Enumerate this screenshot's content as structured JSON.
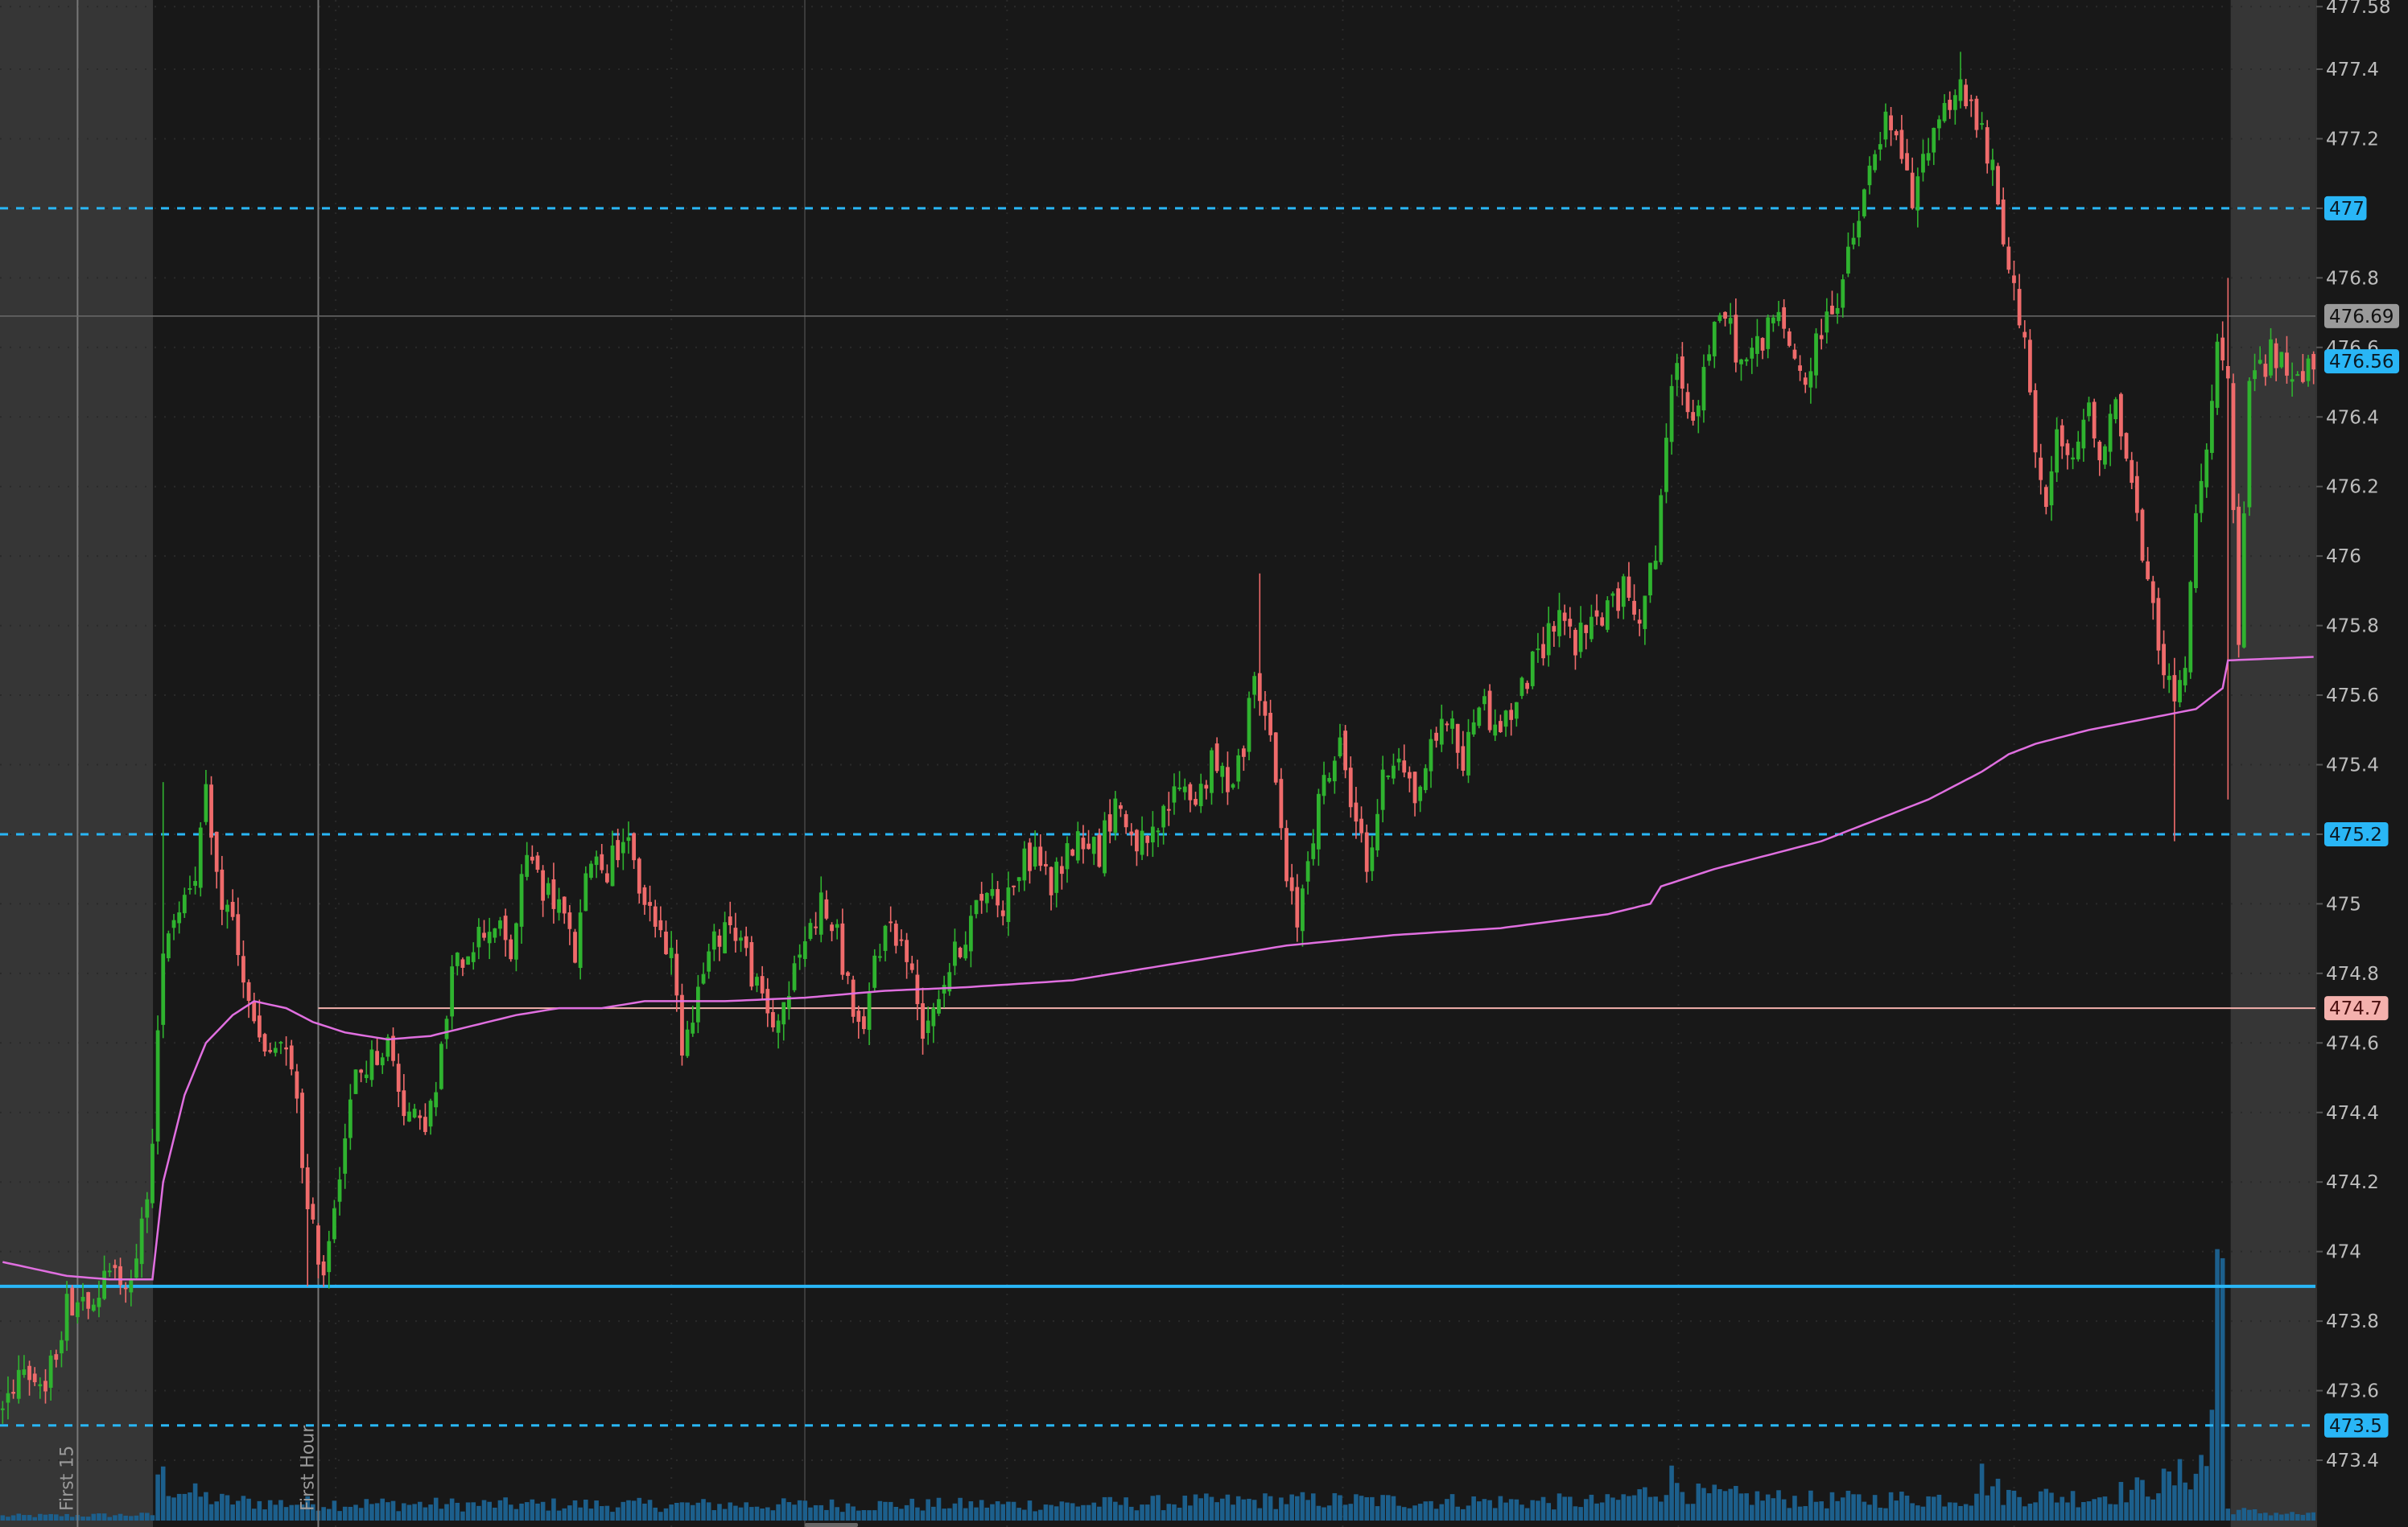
{
  "chart_data": {
    "type": "candlestick",
    "title": "",
    "xlabel": "",
    "ylabel": "",
    "ylim": [
      473.3,
      477.6
    ],
    "y_ticks": [
      473.4,
      473.6,
      473.8,
      474,
      474.2,
      474.4,
      474.6,
      474.8,
      475,
      475.2,
      475.4,
      475.6,
      475.8,
      476,
      476.2,
      476.4,
      476.6,
      476.8,
      477,
      477.2,
      477.4,
      477.58
    ],
    "y_tick_labels": [
      "473.4",
      "473.6",
      "473.8",
      "474",
      "474.2",
      "474.4",
      "474.6",
      "474.8",
      "475",
      "475.2",
      "475.4",
      "475.6",
      "475.8",
      "476",
      "476.2",
      "476.4",
      "476.6",
      "476.8",
      "477",
      "477.2",
      "477.4",
      "477.58"
    ],
    "grid": true,
    "colors": {
      "background": "#181818",
      "extended_hours": "#363636",
      "up_candle": "#2fb32f",
      "down_candle": "#ef6b6b",
      "vwap": "#e06fe0",
      "level_line": "#29b6f6",
      "level_label_text": "#0a1a24",
      "volume": "#1c5f8c",
      "reference_line": "#f4b1ad",
      "crosshair": "#777777",
      "axis_text": "#bdbdbd"
    },
    "price_labels": [
      {
        "label": "477",
        "value": 477,
        "style": "blue"
      },
      {
        "label": "476.69",
        "value": 476.69,
        "style": "gray"
      },
      {
        "label": "476.56",
        "value": 476.56,
        "style": "blue"
      },
      {
        "label": "475.2",
        "value": 475.2,
        "style": "blue"
      },
      {
        "label": "474.7",
        "value": 474.7,
        "style": "pink"
      },
      {
        "label": "473.5",
        "value": 473.5,
        "style": "blue"
      }
    ],
    "levels": [
      {
        "value": 477,
        "style": "dashed"
      },
      {
        "value": 475.2,
        "style": "dashed"
      },
      {
        "value": 473.5,
        "style": "dashed"
      },
      {
        "value": 473.9,
        "style": "solid"
      }
    ],
    "reference_line": 474.7,
    "crosshair_price": 476.69,
    "current_price": 476.56,
    "vertical_markers": [
      {
        "label": "First 15",
        "bar": 14
      },
      {
        "label": "First Hour",
        "bar": 59
      }
    ],
    "extended_hours": {
      "premarket_bars": 28,
      "postmarket_bars": 16
    },
    "close_path": [
      [
        0,
        473.55
      ],
      [
        4,
        473.7
      ],
      [
        8,
        473.6
      ],
      [
        12,
        473.85
      ],
      [
        16,
        473.88
      ],
      [
        20,
        473.92
      ],
      [
        25,
        473.95
      ],
      [
        28,
        474.3
      ],
      [
        30,
        474.9
      ],
      [
        33,
        475.0
      ],
      [
        36,
        475.1
      ],
      [
        38,
        475.3
      ],
      [
        40,
        475.05
      ],
      [
        43,
        474.95
      ],
      [
        46,
        474.7
      ],
      [
        49,
        474.55
      ],
      [
        52,
        474.6
      ],
      [
        55,
        474.45
      ],
      [
        57,
        474.1
      ],
      [
        60,
        473.95
      ],
      [
        63,
        474.25
      ],
      [
        66,
        474.5
      ],
      [
        69,
        474.55
      ],
      [
        72,
        474.6
      ],
      [
        75,
        474.42
      ],
      [
        78,
        474.35
      ],
      [
        81,
        474.45
      ],
      [
        84,
        474.8
      ],
      [
        88,
        474.9
      ],
      [
        92,
        474.95
      ],
      [
        95,
        474.85
      ],
      [
        98,
        475.15
      ],
      [
        101,
        475.05
      ],
      [
        104,
        475.0
      ],
      [
        107,
        474.85
      ],
      [
        110,
        475.15
      ],
      [
        113,
        475.1
      ],
      [
        116,
        475.2
      ],
      [
        119,
        475.05
      ],
      [
        122,
        474.95
      ],
      [
        125,
        474.85
      ],
      [
        127,
        474.6
      ],
      [
        129,
        474.7
      ],
      [
        132,
        474.85
      ],
      [
        135,
        474.95
      ],
      [
        138,
        474.9
      ],
      [
        141,
        474.75
      ],
      [
        144,
        474.65
      ],
      [
        147,
        474.75
      ],
      [
        150,
        474.9
      ],
      [
        153,
        475.0
      ],
      [
        156,
        474.9
      ],
      [
        159,
        474.7
      ],
      [
        161,
        474.6
      ],
      [
        163,
        474.85
      ],
      [
        166,
        474.95
      ],
      [
        169,
        474.85
      ],
      [
        172,
        474.65
      ],
      [
        175,
        474.75
      ],
      [
        178,
        474.85
      ],
      [
        181,
        474.95
      ],
      [
        184,
        475.05
      ],
      [
        187,
        475.0
      ],
      [
        190,
        475.1
      ],
      [
        193,
        475.15
      ],
      [
        196,
        475.05
      ],
      [
        199,
        475.15
      ],
      [
        202,
        475.2
      ],
      [
        205,
        475.15
      ],
      [
        208,
        475.3
      ],
      [
        211,
        475.2
      ],
      [
        214,
        475.15
      ],
      [
        217,
        475.25
      ],
      [
        220,
        475.35
      ],
      [
        223,
        475.3
      ],
      [
        226,
        475.4
      ],
      [
        229,
        475.35
      ],
      [
        232,
        475.45
      ],
      [
        234,
        475.7
      ],
      [
        236,
        475.55
      ],
      [
        238,
        475.35
      ],
      [
        240,
        475.05
      ],
      [
        242,
        474.95
      ],
      [
        244,
        475.15
      ],
      [
        247,
        475.35
      ],
      [
        250,
        475.45
      ],
      [
        253,
        475.25
      ],
      [
        255,
        475.1
      ],
      [
        258,
        475.35
      ],
      [
        261,
        475.45
      ],
      [
        264,
        475.3
      ],
      [
        267,
        475.45
      ],
      [
        270,
        475.55
      ],
      [
        273,
        475.4
      ],
      [
        276,
        475.6
      ],
      [
        279,
        475.5
      ],
      [
        282,
        475.55
      ],
      [
        285,
        475.65
      ],
      [
        288,
        475.75
      ],
      [
        291,
        475.85
      ],
      [
        294,
        475.75
      ],
      [
        297,
        475.8
      ],
      [
        300,
        475.85
      ],
      [
        303,
        475.9
      ],
      [
        306,
        475.85
      ],
      [
        309,
        476.0
      ],
      [
        311,
        476.35
      ],
      [
        313,
        476.55
      ],
      [
        316,
        476.4
      ],
      [
        319,
        476.6
      ],
      [
        322,
        476.7
      ],
      [
        325,
        476.55
      ],
      [
        328,
        476.6
      ],
      [
        331,
        476.7
      ],
      [
        334,
        476.6
      ],
      [
        337,
        476.5
      ],
      [
        340,
        476.65
      ],
      [
        343,
        476.75
      ],
      [
        346,
        476.9
      ],
      [
        349,
        477.1
      ],
      [
        352,
        477.25
      ],
      [
        355,
        477.15
      ],
      [
        357,
        477.0
      ],
      [
        360,
        477.2
      ],
      [
        363,
        477.3
      ],
      [
        366,
        477.35
      ],
      [
        369,
        477.25
      ],
      [
        372,
        477.1
      ],
      [
        375,
        476.8
      ],
      [
        378,
        476.65
      ],
      [
        380,
        476.3
      ],
      [
        382,
        476.1
      ],
      [
        384,
        476.35
      ],
      [
        387,
        476.25
      ],
      [
        390,
        476.45
      ],
      [
        392,
        476.3
      ],
      [
        395,
        476.45
      ],
      [
        398,
        476.2
      ],
      [
        401,
        475.9
      ],
      [
        404,
        475.7
      ],
      [
        406,
        475.55
      ],
      [
        408,
        475.7
      ],
      [
        410,
        476.1
      ],
      [
        412,
        476.35
      ],
      [
        414,
        476.6
      ],
      [
        416,
        476.5
      ],
      [
        418,
        475.7
      ],
      [
        420,
        476.5
      ],
      [
        424,
        476.58
      ],
      [
        428,
        476.52
      ],
      [
        432,
        476.56
      ]
    ],
    "vwap_path": [
      [
        0,
        473.97
      ],
      [
        6,
        473.95
      ],
      [
        12,
        473.93
      ],
      [
        20,
        473.92
      ],
      [
        28,
        473.92
      ],
      [
        30,
        474.2
      ],
      [
        34,
        474.45
      ],
      [
        38,
        474.6
      ],
      [
        43,
        474.68
      ],
      [
        47,
        474.72
      ],
      [
        53,
        474.7
      ],
      [
        58,
        474.66
      ],
      [
        64,
        474.63
      ],
      [
        72,
        474.61
      ],
      [
        80,
        474.62
      ],
      [
        88,
        474.65
      ],
      [
        96,
        474.68
      ],
      [
        104,
        474.7
      ],
      [
        112,
        474.7
      ],
      [
        120,
        474.72
      ],
      [
        135,
        474.72
      ],
      [
        150,
        474.73
      ],
      [
        165,
        474.75
      ],
      [
        180,
        474.76
      ],
      [
        200,
        474.78
      ],
      [
        220,
        474.83
      ],
      [
        240,
        474.88
      ],
      [
        260,
        474.91
      ],
      [
        280,
        474.93
      ],
      [
        300,
        474.97
      ],
      [
        308,
        475.0
      ],
      [
        310,
        475.05
      ],
      [
        320,
        475.1
      ],
      [
        330,
        475.14
      ],
      [
        340,
        475.18
      ],
      [
        350,
        475.24
      ],
      [
        360,
        475.3
      ],
      [
        370,
        475.38
      ],
      [
        375,
        475.43
      ],
      [
        380,
        475.46
      ],
      [
        390,
        475.5
      ],
      [
        400,
        475.53
      ],
      [
        410,
        475.56
      ],
      [
        415,
        475.62
      ],
      [
        416,
        475.7
      ],
      [
        432,
        475.71
      ]
    ],
    "volume_profile": [
      [
        0,
        0.08
      ],
      [
        28,
        0.1
      ],
      [
        29,
        0.85
      ],
      [
        31,
        0.6
      ],
      [
        33,
        0.55
      ],
      [
        36,
        0.45
      ],
      [
        40,
        0.35
      ],
      [
        50,
        0.3
      ],
      [
        60,
        0.3
      ],
      [
        80,
        0.28
      ],
      [
        120,
        0.27
      ],
      [
        160,
        0.27
      ],
      [
        200,
        0.28
      ],
      [
        240,
        0.35
      ],
      [
        300,
        0.32
      ],
      [
        310,
        0.55
      ],
      [
        312,
        0.72
      ],
      [
        316,
        0.45
      ],
      [
        340,
        0.35
      ],
      [
        368,
        0.4
      ],
      [
        370,
        0.75
      ],
      [
        374,
        0.45
      ],
      [
        390,
        0.4
      ],
      [
        400,
        0.55
      ],
      [
        406,
        0.7
      ],
      [
        409,
        0.85
      ],
      [
        411,
        1.0
      ],
      [
        412,
        0.95
      ],
      [
        413,
        2.0
      ],
      [
        414,
        4.8
      ],
      [
        415,
        4.0
      ],
      [
        416,
        0.2
      ],
      [
        420,
        0.15
      ],
      [
        432,
        0.1
      ]
    ]
  }
}
